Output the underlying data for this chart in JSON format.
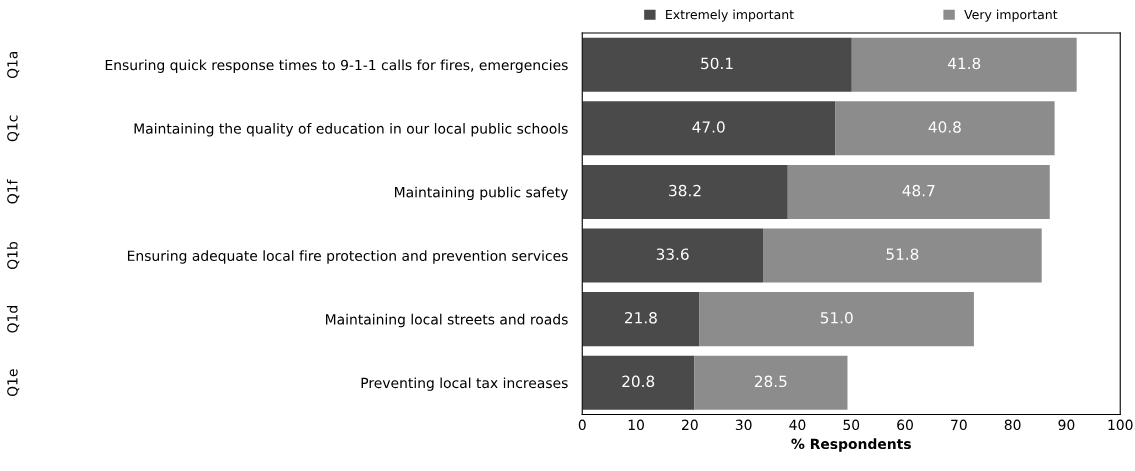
{
  "chart_data": {
    "type": "bar",
    "orientation": "horizontal",
    "stacked": true,
    "categories": [
      "Ensuring quick response times to 9-1-1 calls for fires, emergencies",
      "Maintaining the quality of education in our local public schools",
      "Maintaining public safety",
      "Ensuring adequate local fire protection and prevention services",
      "Maintaining local streets and roads",
      "Preventing local tax increases"
    ],
    "y2_categories": [
      "Q1a",
      "Q1c",
      "Q1f",
      "Q1b",
      "Q1d",
      "Q1e"
    ],
    "series": [
      {
        "name": "Extremely important",
        "color": "#4a4a4a",
        "values": [
          50.1,
          47.0,
          38.2,
          33.6,
          21.8,
          20.8
        ],
        "value_labels": [
          "50.1",
          "47.0",
          "38.2",
          "33.6",
          "21.8",
          "20.8"
        ]
      },
      {
        "name": "Very important",
        "color": "#8c8c8c",
        "values": [
          41.8,
          40.8,
          48.7,
          51.8,
          51.0,
          28.5
        ],
        "value_labels": [
          "41.8",
          "40.8",
          "48.7",
          "51.8",
          "51.0",
          "28.5"
        ]
      }
    ],
    "xlabel": "% Respondents",
    "xlim": [
      0,
      100
    ],
    "xticks": [
      0,
      10,
      20,
      30,
      40,
      50,
      60,
      70,
      80,
      90,
      100
    ],
    "legend": "top",
    "grid": false
  }
}
